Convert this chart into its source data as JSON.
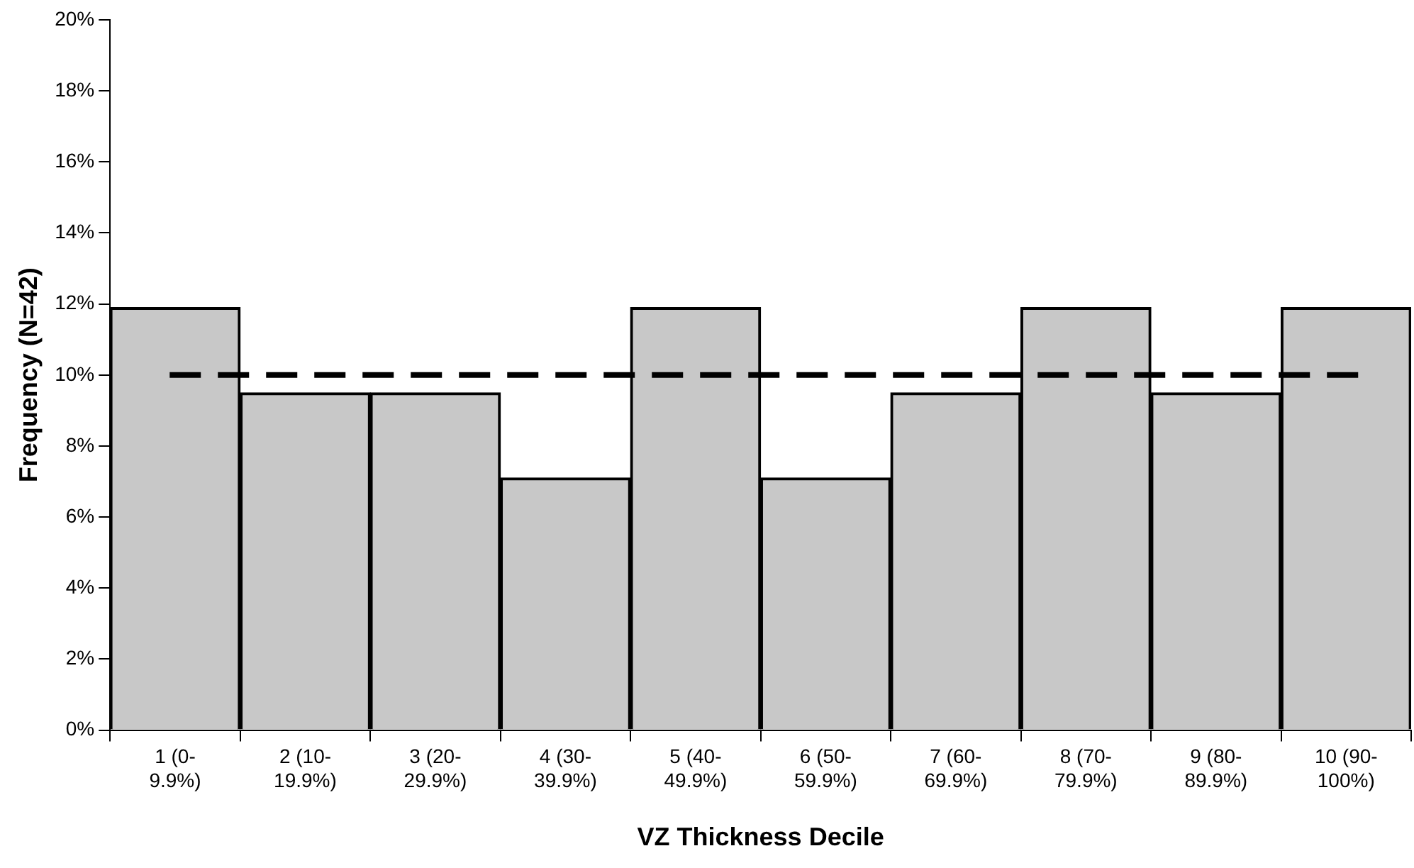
{
  "chart_data": {
    "type": "bar",
    "xlabel": "VZ Thickness Decile",
    "ylabel": "Frequency (N=42)",
    "categories": [
      "1 (0-\n9.9%)",
      "2 (10-\n19.9%)",
      "3 (20-\n29.9%)",
      "4 (30-\n39.9%)",
      "5 (40-\n49.9%)",
      "6 (50-\n59.9%)",
      "7 (60-\n69.9%)",
      "8 (70-\n79.9%)",
      "9 (80-\n89.9%)",
      "10 (90-\n100%)"
    ],
    "values": [
      11.9,
      9.5,
      9.5,
      7.1,
      11.9,
      7.1,
      9.5,
      11.9,
      9.5,
      11.9
    ],
    "color": "#c8c8c8",
    "ylim": [
      0,
      20
    ],
    "yticks": [
      {
        "value": 0,
        "label": "0%"
      },
      {
        "value": 2,
        "label": "2%"
      },
      {
        "value": 4,
        "label": "4%"
      },
      {
        "value": 6,
        "label": "6%"
      },
      {
        "value": 8,
        "label": "8%"
      },
      {
        "value": 10,
        "label": "10%"
      },
      {
        "value": 12,
        "label": "12%"
      },
      {
        "value": 14,
        "label": "14%"
      },
      {
        "value": 16,
        "label": "16%"
      },
      {
        "value": 18,
        "label": "18%"
      },
      {
        "value": 20,
        "label": "20%"
      }
    ],
    "ref_lines": [
      {
        "axis": "y",
        "value": 10,
        "color": "#000000",
        "line_style": "dashed"
      }
    ],
    "grid": false,
    "legend": false
  }
}
